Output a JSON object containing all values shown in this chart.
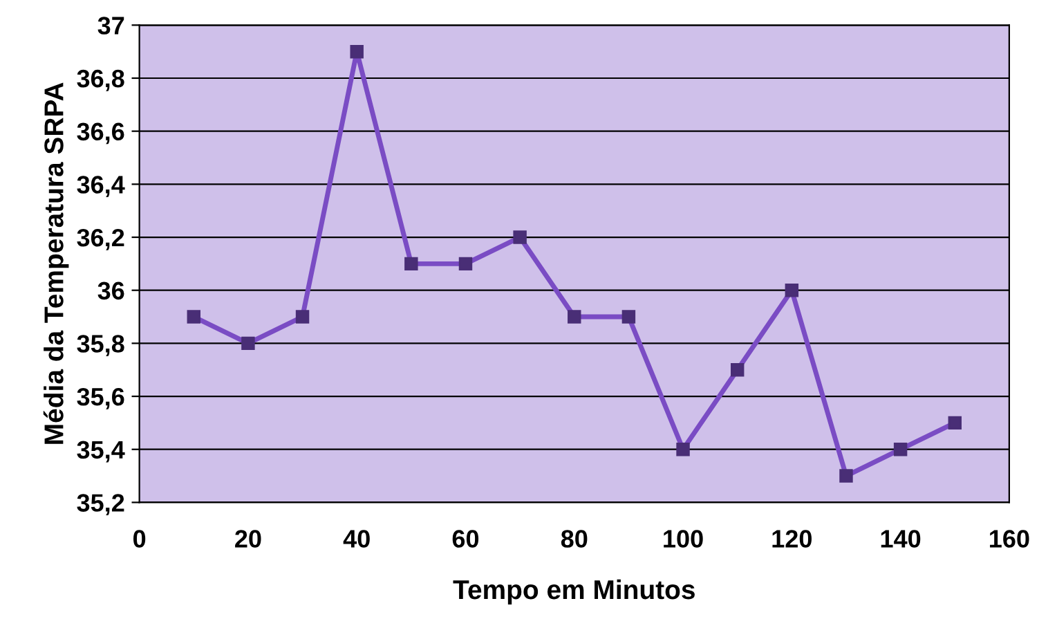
{
  "chart_data": {
    "type": "line",
    "xlabel": "Tempo em Minutos",
    "ylabel": "Média da Temperatura SRPA",
    "x": [
      10,
      20,
      30,
      40,
      50,
      60,
      70,
      80,
      90,
      100,
      110,
      120,
      130,
      140,
      150
    ],
    "series": [
      {
        "color": "#7a4cc4",
        "values": [
          35.9,
          35.8,
          35.9,
          36.9,
          36.1,
          36.1,
          36.2,
          35.9,
          35.9,
          35.4,
          35.7,
          36.0,
          35.3,
          35.4,
          35.5
        ]
      }
    ],
    "marker": "square",
    "line_style": "solid",
    "grid": "y",
    "legend": false,
    "xlim": [
      0,
      160
    ],
    "xticks": [
      0,
      20,
      40,
      60,
      80,
      100,
      120,
      140,
      160
    ],
    "ylim": [
      35.2,
      37
    ],
    "yticks": [
      {
        "value": 35.2,
        "label": "35,2"
      },
      {
        "value": 35.4,
        "label": "35,4"
      },
      {
        "value": 35.6,
        "label": "35,6"
      },
      {
        "value": 35.8,
        "label": "35,8"
      },
      36,
      {
        "value": 36.2,
        "label": "36,2"
      },
      {
        "value": 36.4,
        "label": "36,4"
      },
      {
        "value": 36.6,
        "label": "36,6"
      },
      {
        "value": 36.8,
        "label": "36,8"
      },
      37
    ]
  }
}
